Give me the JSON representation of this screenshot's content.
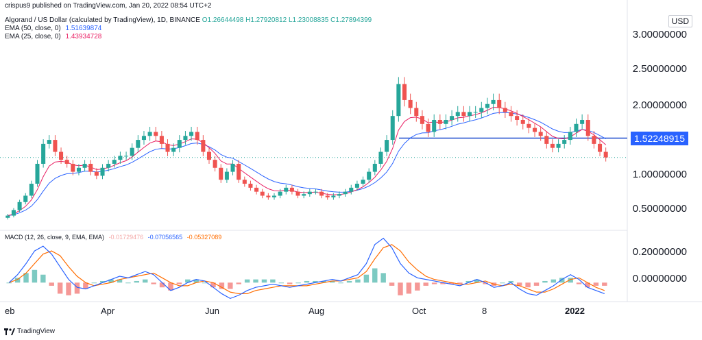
{
  "header": {
    "publisher": "crispus9 published on TradingView.com, Jan 20, 2022 08:54 UTC+2",
    "symbol": "Algorand / US Dollar (calculated by TradingView), 1D, BINANCE",
    "ohlc": {
      "open": "O1.26644498",
      "high": "H1.27920812",
      "low": "L1.23008835",
      "close": "C1.27894399"
    },
    "ema50_label": "EMA (50, close, 0)",
    "ema50_value": "1.51639874",
    "ema25_label": "EMA (25, close, 0)",
    "ema25_value": "1.43934728"
  },
  "macd": {
    "label": "MACD (12, 26, close, 9, EMA, EMA)",
    "hist_value": "-0.01729476",
    "macd_value": "-0.07056565",
    "signal_value": "-0.05327089"
  },
  "currency": "USD",
  "price_axis": [
    "3.00000000",
    "2.50000000",
    "2.00000000",
    "1.00000000",
    "0.50000000"
  ],
  "macd_axis": [
    "0.20000000",
    "0.00000000"
  ],
  "price_tag": "1.52248915",
  "x_labels": [
    "eb",
    "Apr",
    "Jun",
    "Aug",
    "Oct",
    "8",
    "2022"
  ],
  "footer": "TradingView",
  "colors": {
    "up": "#26a69a",
    "down": "#ef5350",
    "ema50": "#2962ff",
    "ema25": "#e91e63",
    "macd": "#2962ff",
    "signal": "#ff6d00",
    "hist_up": "#26a69a",
    "hist_down": "#ef5350",
    "hline": "#1848cc"
  },
  "chart_data": [
    {
      "type": "candlestick",
      "title": "Algorand / US Dollar, 1D",
      "x_range": [
        "2021-02",
        "2022-01-20"
      ],
      "ylim": [
        0.4,
        3.1
      ],
      "horizontal_line": 1.52248915,
      "last_close": 1.27894399,
      "closes": [
        0.55,
        0.62,
        0.72,
        0.8,
        0.95,
        1.2,
        1.45,
        1.5,
        1.35,
        1.25,
        1.2,
        1.1,
        1.15,
        1.2,
        1.1,
        1.05,
        1.15,
        1.2,
        1.25,
        1.3,
        1.3,
        1.4,
        1.5,
        1.55,
        1.6,
        1.55,
        1.45,
        1.35,
        1.4,
        1.5,
        1.55,
        1.6,
        1.5,
        1.35,
        1.25,
        1.15,
        1.0,
        1.1,
        1.2,
        1.0,
        0.95,
        0.9,
        0.85,
        0.8,
        0.78,
        0.8,
        0.85,
        0.9,
        0.85,
        0.8,
        0.82,
        0.85,
        0.85,
        0.8,
        0.78,
        0.8,
        0.82,
        0.85,
        0.9,
        0.95,
        1.0,
        1.1,
        1.2,
        1.35,
        1.5,
        1.8,
        2.2,
        2.0,
        1.9,
        1.8,
        1.7,
        1.6,
        1.75,
        1.7,
        1.75,
        1.8,
        1.85,
        1.8,
        1.85,
        1.85,
        1.9,
        1.95,
        2.0,
        1.9,
        1.85,
        1.8,
        1.75,
        1.7,
        1.65,
        1.6,
        1.55,
        1.45,
        1.4,
        1.45,
        1.5,
        1.6,
        1.7,
        1.75,
        1.55,
        1.45,
        1.35,
        1.28
      ]
    },
    {
      "type": "line",
      "title": "MACD (12, 26, close, 9, EMA, EMA)",
      "ylim": [
        -0.12,
        0.33
      ],
      "series": [
        {
          "name": "MACD",
          "values": [
            0.0,
            0.05,
            0.12,
            0.2,
            0.23,
            0.18,
            0.1,
            0.02,
            -0.03,
            -0.04,
            -0.02,
            0.0,
            0.02,
            0.04,
            0.03,
            0.05,
            0.07,
            0.05,
            0.0,
            -0.05,
            -0.03,
            0.0,
            0.02,
            0.01,
            -0.03,
            -0.07,
            -0.1,
            -0.08,
            -0.05,
            -0.03,
            -0.02,
            -0.01,
            -0.02,
            -0.03,
            -0.02,
            -0.01,
            0.0,
            0.01,
            0.02,
            0.01,
            0.03,
            0.05,
            0.12,
            0.24,
            0.28,
            0.22,
            0.12,
            0.06,
            0.03,
            0.02,
            0.01,
            0.0,
            -0.01,
            -0.02,
            0.0,
            0.02,
            0.0,
            -0.03,
            -0.02,
            0.0,
            -0.04,
            -0.07,
            -0.08,
            -0.05,
            -0.02,
            0.02,
            0.05,
            0.02,
            -0.03,
            -0.05,
            -0.07
          ]
        },
        {
          "name": "Signal",
          "values": [
            0.0,
            0.02,
            0.06,
            0.12,
            0.18,
            0.2,
            0.17,
            0.1,
            0.04,
            0.0,
            -0.02,
            -0.01,
            0.0,
            0.02,
            0.03,
            0.04,
            0.05,
            0.06,
            0.03,
            0.0,
            -0.02,
            -0.02,
            0.0,
            0.01,
            0.0,
            -0.03,
            -0.06,
            -0.07,
            -0.07,
            -0.05,
            -0.04,
            -0.03,
            -0.02,
            -0.02,
            -0.02,
            -0.02,
            -0.01,
            0.0,
            0.01,
            0.01,
            0.02,
            0.03,
            0.07,
            0.15,
            0.22,
            0.24,
            0.2,
            0.13,
            0.08,
            0.04,
            0.02,
            0.01,
            0.0,
            -0.01,
            -0.01,
            0.0,
            0.01,
            -0.01,
            -0.02,
            -0.01,
            -0.02,
            -0.04,
            -0.06,
            -0.06,
            -0.04,
            -0.01,
            0.02,
            0.03,
            0.0,
            -0.03,
            -0.05
          ]
        }
      ]
    }
  ]
}
